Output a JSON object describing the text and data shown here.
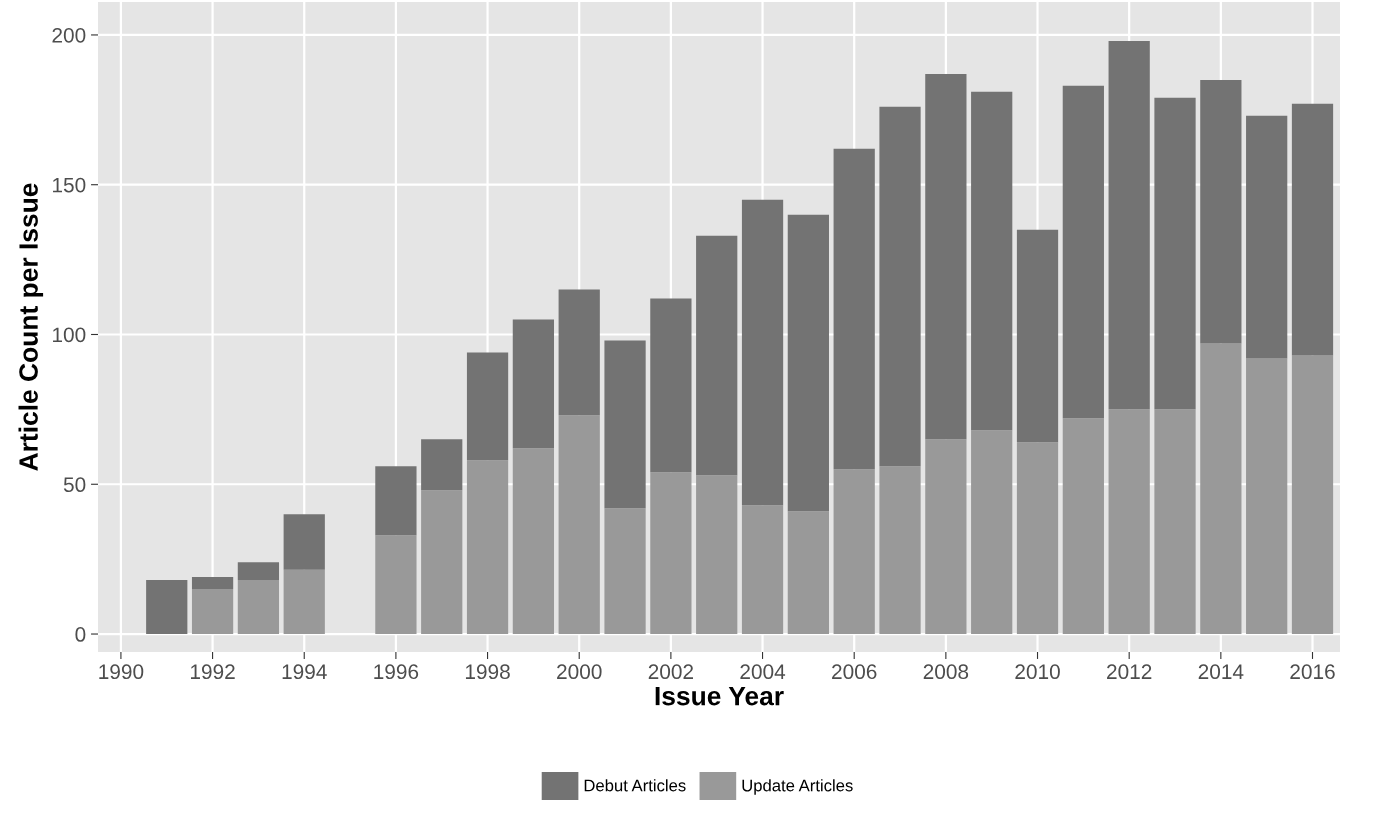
{
  "chart_data": {
    "type": "bar",
    "stacked": true,
    "xlabel": "Issue Year",
    "ylabel": "Article Count per Issue",
    "x": [
      1991,
      1992,
      1993,
      1994,
      1996,
      1997,
      1998,
      1999,
      2000,
      2001,
      2002,
      2003,
      2004,
      2005,
      2006,
      2007,
      2008,
      2009,
      2010,
      2011,
      2012,
      2013,
      2014,
      2015,
      2016
    ],
    "series": [
      {
        "name": "Update Articles",
        "color": "#999999",
        "values": [
          0,
          15,
          18,
          21.5,
          33,
          48,
          58,
          62,
          73,
          42,
          54,
          53,
          43,
          41,
          55,
          56,
          65,
          68,
          64,
          72,
          75,
          75,
          97,
          92,
          93
        ]
      },
      {
        "name": "Debut Articles",
        "color": "#737373",
        "values": [
          18,
          4,
          6,
          18.5,
          23,
          17,
          36,
          43,
          42,
          56,
          58,
          80,
          102,
          99,
          107,
          120,
          122,
          113,
          71,
          111,
          123,
          104,
          88,
          81,
          84
        ]
      }
    ],
    "xlim": [
      1989.5,
      2016.6
    ],
    "xticks": [
      1990,
      1992,
      1994,
      1996,
      1998,
      2000,
      2002,
      2004,
      2006,
      2008,
      2010,
      2012,
      2014,
      2016
    ],
    "ylim": [
      -6,
      211
    ],
    "yticks": [
      0,
      50,
      100,
      150,
      200
    ],
    "grid": true,
    "legend": "bottom"
  }
}
